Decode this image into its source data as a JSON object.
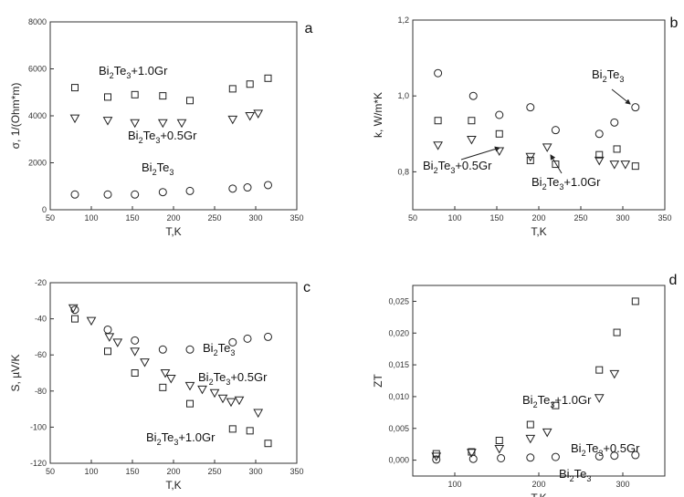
{
  "chart_data": [
    {
      "type": "scatter",
      "panel_label": "a",
      "xlabel": "T,K",
      "ylabel": "σ, 1/(Ohm*m)",
      "xlim": [
        50,
        350
      ],
      "ylim": [
        0,
        8000
      ],
      "xticks": [
        50,
        100,
        150,
        200,
        250,
        300,
        350
      ],
      "yticks": [
        0,
        2000,
        4000,
        6000,
        8000
      ],
      "series": [
        {
          "name": "Bi2Te3+1.0Gr",
          "marker": "square",
          "x": [
            80,
            120,
            153,
            187,
            220,
            272,
            293,
            315
          ],
          "y": [
            5200,
            4800,
            4900,
            4850,
            4650,
            5150,
            5350,
            5600
          ]
        },
        {
          "name": "Bi2Te3+0.5Gr",
          "marker": "triangle-down",
          "x": [
            80,
            120,
            153,
            187,
            210,
            272,
            293,
            303
          ],
          "y": [
            3900,
            3800,
            3700,
            3700,
            3700,
            3850,
            4000,
            4100
          ]
        },
        {
          "name": "Bi2Te3",
          "marker": "circle",
          "x": [
            80,
            120,
            153,
            187,
            220,
            272,
            290,
            315
          ],
          "y": [
            650,
            650,
            650,
            750,
            800,
            900,
            950,
            1050
          ]
        }
      ],
      "annotations": [
        {
          "base": "Bi",
          "sub1": "2",
          "mid": "Te",
          "sub2": "3",
          "suffix": "+1.0Gr"
        },
        {
          "base": "Bi",
          "sub1": "2",
          "mid": "Te",
          "sub2": "3",
          "suffix": "+0.5Gr"
        },
        {
          "base": "Bi",
          "sub1": "2",
          "mid": "Te",
          "sub2": "3",
          "suffix": ""
        }
      ]
    },
    {
      "type": "scatter",
      "panel_label": "b",
      "xlabel": "T,K",
      "ylabel": "k, W/m*K",
      "xlim": [
        50,
        350
      ],
      "ylim": [
        0.7,
        1.2
      ],
      "xticks": [
        50,
        100,
        150,
        200,
        250,
        300,
        350
      ],
      "yticks": [
        0.8,
        1.0,
        1.2
      ],
      "ytick_labels": [
        "0,8",
        "1,0",
        "1,2"
      ],
      "series": [
        {
          "name": "Bi2Te3",
          "marker": "circle",
          "x": [
            80,
            122,
            153,
            190,
            220,
            272,
            290,
            315
          ],
          "y": [
            1.06,
            1.0,
            0.95,
            0.97,
            0.91,
            0.9,
            0.93,
            0.97
          ]
        },
        {
          "name": "Bi2Te3+1.0Gr",
          "marker": "square",
          "x": [
            80,
            120,
            153,
            190,
            220,
            272,
            293,
            315
          ],
          "y": [
            0.935,
            0.935,
            0.9,
            0.83,
            0.82,
            0.845,
            0.86,
            0.815
          ]
        },
        {
          "name": "Bi2Te3+0.5Gr",
          "marker": "triangle-down",
          "x": [
            80,
            120,
            153,
            190,
            210,
            272,
            290,
            303
          ],
          "y": [
            0.87,
            0.885,
            0.855,
            0.84,
            0.865,
            0.83,
            0.82,
            0.82
          ]
        }
      ],
      "annotations": [
        {
          "base": "Bi",
          "sub1": "2",
          "mid": "Te",
          "sub2": "3",
          "suffix": ""
        },
        {
          "base": "Bi",
          "sub1": "2",
          "mid": "Te",
          "sub2": "3",
          "suffix": "+0.5Gr"
        },
        {
          "base": "Bi",
          "sub1": "2",
          "mid": "Te",
          "sub2": "3",
          "suffix": "+1.0Gr"
        }
      ]
    },
    {
      "type": "scatter",
      "panel_label": "c",
      "xlabel": "T,K",
      "ylabel": "S, µV/K",
      "xlim": [
        50,
        350
      ],
      "ylim": [
        -120,
        -20
      ],
      "xticks": [
        50,
        100,
        150,
        200,
        250,
        300,
        350
      ],
      "yticks": [
        -120,
        -100,
        -80,
        -60,
        -40,
        -20
      ],
      "series": [
        {
          "name": "Bi2Te3",
          "marker": "circle",
          "x": [
            80,
            120,
            153,
            187,
            220,
            272,
            290,
            315
          ],
          "y": [
            -35,
            -46,
            -52,
            -57,
            -57,
            -53,
            -51,
            -50
          ]
        },
        {
          "name": "Bi2Te3+0.5Gr",
          "marker": "triangle-down",
          "x": [
            78,
            100,
            122,
            132,
            153,
            165,
            190,
            197,
            220,
            235,
            250,
            260,
            270,
            280,
            303
          ],
          "y": [
            -34,
            -41,
            -50,
            -53,
            -58,
            -64,
            -70,
            -73,
            -77,
            -79,
            -81,
            -84,
            -86,
            -85,
            -92
          ]
        },
        {
          "name": "Bi2Te3+1.0Gr",
          "marker": "square",
          "x": [
            80,
            120,
            153,
            187,
            220,
            272,
            293,
            315
          ],
          "y": [
            -40,
            -58,
            -70,
            -78,
            -87,
            -101,
            -102,
            -109
          ]
        }
      ],
      "annotations": [
        {
          "base": "Bi",
          "sub1": "2",
          "mid": "Te",
          "sub2": "3",
          "suffix": ""
        },
        {
          "base": "Bi",
          "sub1": "2",
          "mid": "Te",
          "sub2": "3",
          "suffix": "+0.5Gr"
        },
        {
          "base": "Bi",
          "sub1": "2",
          "mid": "Te",
          "sub2": "3",
          "suffix": "+1.0Gr"
        }
      ]
    },
    {
      "type": "scatter",
      "panel_label": "d",
      "xlabel": "T,K",
      "ylabel": "ZT",
      "xlim": [
        50,
        350
      ],
      "ylim": [
        -0.0025,
        0.0275
      ],
      "xticks": [
        100,
        200,
        300
      ],
      "yticks": [
        0,
        0.005,
        0.01,
        0.015,
        0.02,
        0.025
      ],
      "ytick_labels": [
        "0,000",
        "0,005",
        "0,010",
        "0,015",
        "0,020",
        "0,025"
      ],
      "series": [
        {
          "name": "Bi2Te3+1.0Gr",
          "marker": "square",
          "x": [
            78,
            120,
            153,
            190,
            220,
            272,
            293,
            315
          ],
          "y": [
            0.001,
            0.0013,
            0.0031,
            0.0056,
            0.0086,
            0.0142,
            0.0201,
            0.025
          ]
        },
        {
          "name": "Bi2Te3+0.5Gr",
          "marker": "triangle-down",
          "x": [
            78,
            120,
            153,
            190,
            210,
            272,
            290
          ],
          "y": [
            0.0006,
            0.0012,
            0.0018,
            0.0034,
            0.0044,
            0.0098,
            0.0136
          ]
        },
        {
          "name": "Bi2Te3",
          "marker": "circle",
          "x": [
            78,
            122,
            155,
            190,
            220,
            272,
            290,
            315
          ],
          "y": [
            0.0001,
            0.0002,
            0.0003,
            0.0004,
            0.0005,
            0.0006,
            0.0007,
            0.0008
          ]
        }
      ],
      "annotations": [
        {
          "base": "Bi",
          "sub1": "2",
          "mid": "Te",
          "sub2": "3",
          "suffix": "+1.0Gr"
        },
        {
          "base": "Bi",
          "sub1": "2",
          "mid": "Te",
          "sub2": "3",
          "suffix": "+0.5Gr"
        },
        {
          "base": "Bi",
          "sub1": "2",
          "mid": "Te",
          "sub2": "3",
          "suffix": ""
        }
      ]
    }
  ]
}
